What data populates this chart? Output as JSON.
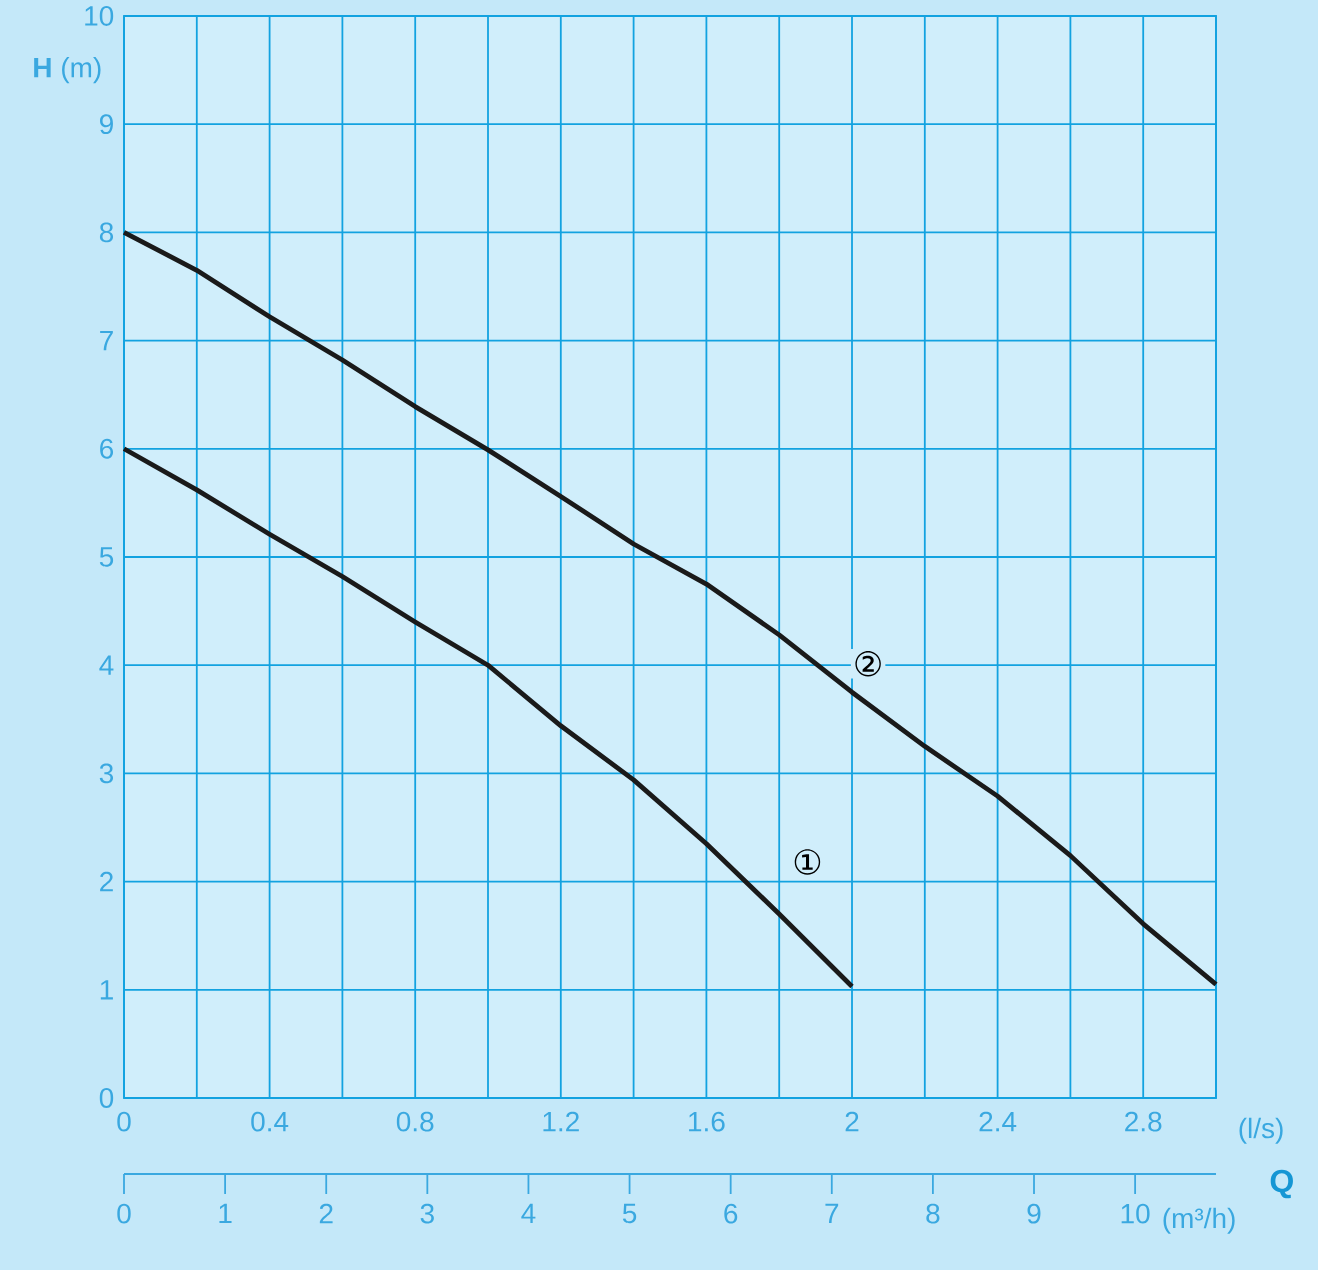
{
  "chart_data": {
    "type": "line",
    "xlabel": "(l/s)",
    "ylabel": "**H** (m)",
    "x2label": "(m³/h)",
    "annotations": [
      "Q"
    ],
    "xlim": [
      0,
      3.0
    ],
    "ylim": [
      0,
      10
    ],
    "x2lim": [
      0,
      10.8
    ],
    "xticks": [
      0,
      {
        "value": 0.2,
        "label": null
      },
      0.4,
      {
        "value": 0.6,
        "label": null
      },
      0.8,
      {
        "value": 1.0,
        "label": null
      },
      1.2,
      {
        "value": 1.4,
        "label": null
      },
      1.6,
      {
        "value": 1.8,
        "label": null
      },
      2,
      {
        "value": 2.2,
        "label": null
      },
      2.4,
      {
        "value": 2.6,
        "label": null
      },
      2.8,
      {
        "value": 3.0,
        "label": null
      }
    ],
    "yticks": [
      0,
      1,
      2,
      3,
      4,
      5,
      6,
      7,
      8,
      9,
      10
    ],
    "x2ticks": [
      0,
      1,
      2,
      3,
      4,
      5,
      6,
      7,
      8,
      9,
      10
    ],
    "grid": true,
    "line_style": "solid",
    "series": [
      {
        "name": "①",
        "color": "#1a1a1a",
        "x": [
          0,
          0.2,
          0.4,
          0.6,
          0.8,
          1.0,
          1.2,
          1.4,
          1.6,
          1.8,
          2.0
        ],
        "values": [
          6,
          5.62,
          5.21,
          4.82,
          4.4,
          4.0,
          3.44,
          2.94,
          2.35,
          1.7,
          1.03
        ]
      },
      {
        "name": "②",
        "color": "#1a1a1a",
        "x": [
          0,
          0.2,
          0.4,
          0.6,
          0.8,
          1.0,
          1.2,
          1.4,
          1.6,
          1.8,
          2.0,
          2.2,
          2.4,
          2.6,
          2.8,
          3.0
        ],
        "values": [
          8,
          7.65,
          7.22,
          6.82,
          6.39,
          5.99,
          5.56,
          5.12,
          4.75,
          4.28,
          3.75,
          3.25,
          2.79,
          2.24,
          1.61,
          1.05
        ]
      }
    ]
  }
}
